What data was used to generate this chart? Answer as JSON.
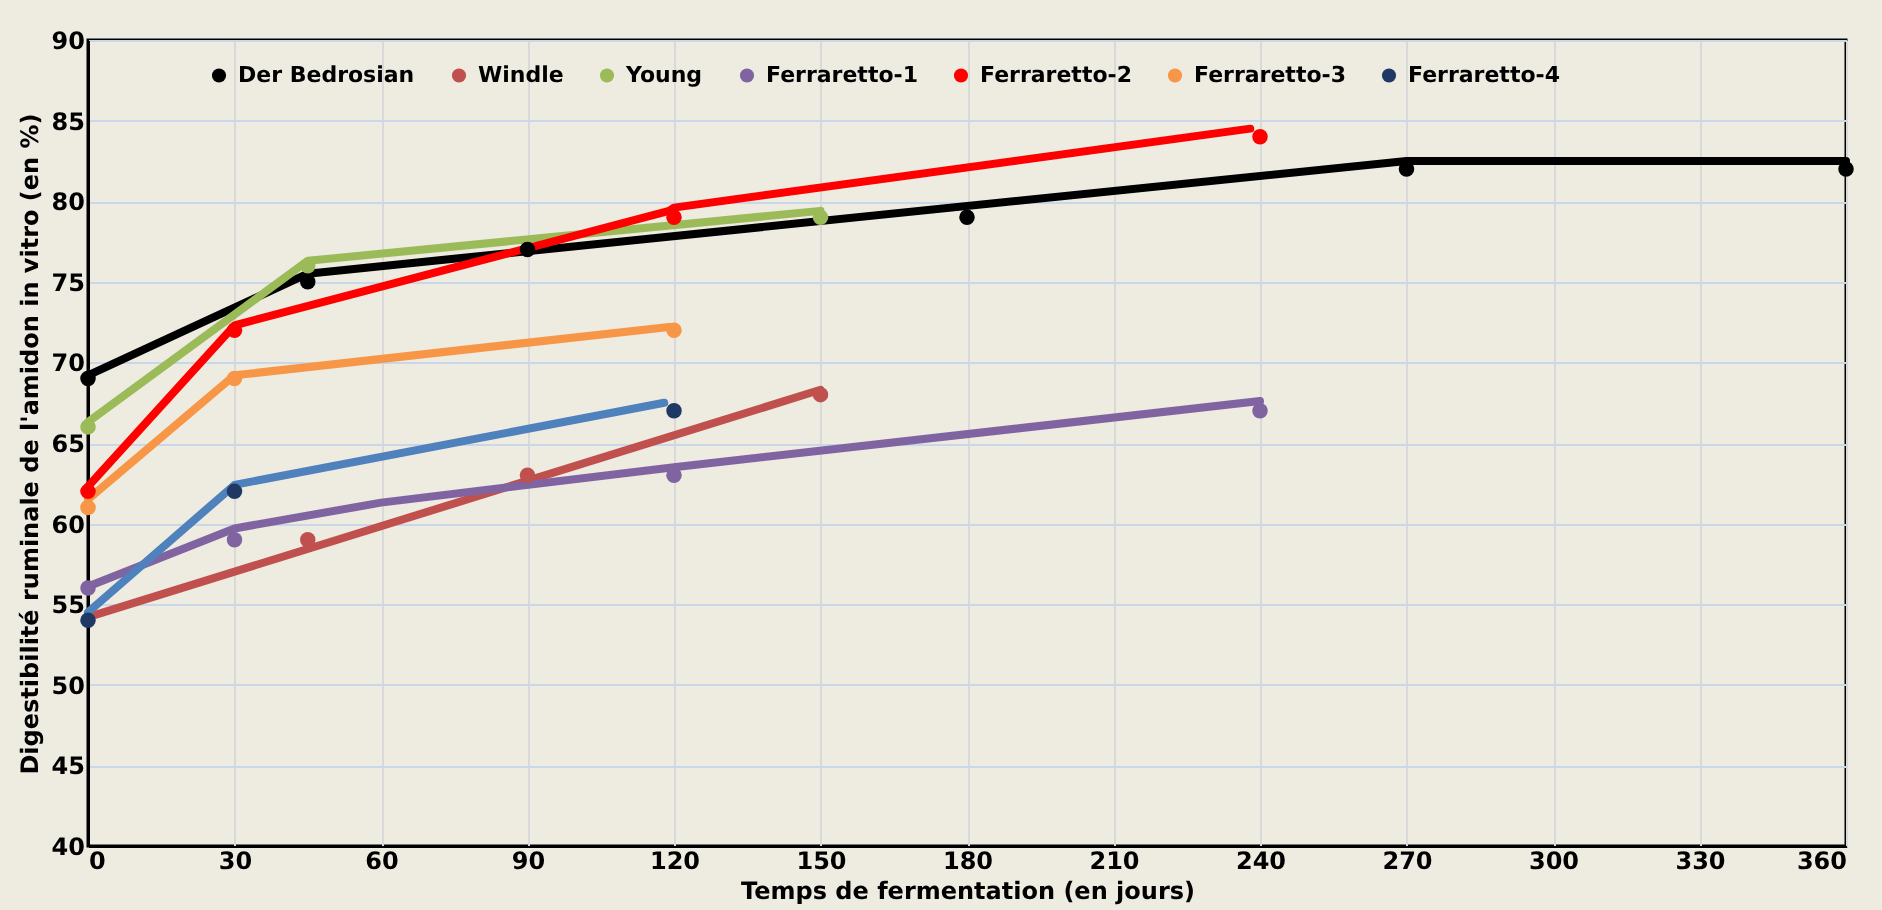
{
  "chart_data": {
    "type": "scatter",
    "xlabel": "Temps de fermentation (en jours)",
    "ylabel": "Digestibilité ruminale de l'amidon in vitro (en %)",
    "xlim": [
      0,
      360
    ],
    "xticks": [
      0,
      30,
      60,
      90,
      120,
      150,
      180,
      210,
      240,
      270,
      300,
      330,
      360
    ],
    "ylim": [
      40,
      90
    ],
    "yticks": [
      40,
      45,
      50,
      55,
      60,
      65,
      70,
      75,
      80,
      85,
      90
    ],
    "grid": true,
    "legend": "top",
    "marker": "circle",
    "series": [
      {
        "type": "line",
        "marker": "none",
        "color": "#000000",
        "x": [
          0,
          45,
          270,
          360
        ],
        "values": [
          69.2,
          75.5,
          82.5,
          82.5
        ]
      },
      {
        "type": "line",
        "marker": "none",
        "color": "#c0504d",
        "x": [
          0,
          150
        ],
        "values": [
          54.2,
          68.3
        ]
      },
      {
        "type": "line",
        "marker": "none",
        "color": "#9bbb59",
        "x": [
          0,
          45,
          150
        ],
        "values": [
          66.3,
          76.3,
          79.4
        ]
      },
      {
        "type": "line",
        "marker": "none",
        "color": "#8064a2",
        "x": [
          0,
          30,
          60,
          120,
          240
        ],
        "values": [
          56.1,
          59.7,
          61.3,
          63.5,
          67.6
        ]
      },
      {
        "type": "line",
        "marker": "none",
        "color": "#ff0000",
        "x": [
          0,
          30,
          119,
          120,
          238
        ],
        "values": [
          62.3,
          72.3,
          79.4,
          79.6,
          84.5
        ]
      },
      {
        "type": "line",
        "marker": "none",
        "color": "#f79646",
        "x": [
          0,
          30,
          119
        ],
        "values": [
          61.5,
          69.2,
          72.2
        ]
      },
      {
        "type": "line",
        "marker": "none",
        "color": "#4f81bd",
        "x": [
          0,
          30,
          118
        ],
        "values": [
          54.5,
          62.4,
          67.5
        ]
      },
      {
        "name": "Der Bedrosian",
        "color": "#000000",
        "x": [
          0,
          45,
          90,
          180,
          270,
          360
        ],
        "values": [
          69,
          75,
          77,
          79,
          82,
          82
        ]
      },
      {
        "name": "Windle",
        "color": "#c0504d",
        "x": [
          45,
          90,
          150
        ],
        "values": [
          59,
          63,
          68
        ]
      },
      {
        "name": "Young",
        "color": "#9bbb59",
        "x": [
          0,
          45,
          150
        ],
        "values": [
          66,
          76,
          79
        ]
      },
      {
        "name": "Ferraretto-1",
        "color": "#8064a2",
        "x": [
          0,
          30,
          120,
          240
        ],
        "values": [
          56,
          59,
          63,
          67
        ]
      },
      {
        "name": "Ferraretto-2",
        "color": "#ff0000",
        "x": [
          0,
          30,
          120,
          240
        ],
        "values": [
          62,
          72,
          79,
          84
        ]
      },
      {
        "name": "Ferraretto-3",
        "color": "#f79646",
        "x": [
          0,
          30,
          120
        ],
        "values": [
          61,
          69,
          72
        ]
      },
      {
        "name": "Ferraretto-4",
        "color": "#1f3864",
        "x": [
          0,
          30,
          120
        ],
        "values": [
          54,
          62,
          67
        ]
      }
    ]
  }
}
